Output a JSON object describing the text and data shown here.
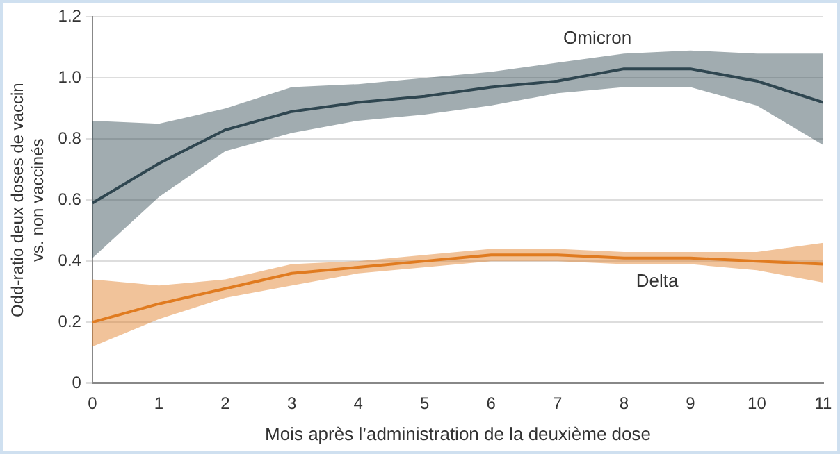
{
  "chart_data": {
    "type": "line",
    "xlabel": "Mois après l’administration de la deuxième dose",
    "ylabel": "Odd-ratio deux doses de vaccin\nvs. non vaccinés",
    "x": [
      0,
      1,
      2,
      3,
      4,
      5,
      6,
      7,
      8,
      9,
      10,
      11
    ],
    "series": [
      {
        "name": "Omicron",
        "color": "#2f4650",
        "values": [
          0.59,
          0.72,
          0.83,
          0.89,
          0.92,
          0.94,
          0.97,
          0.99,
          1.03,
          1.03,
          0.99,
          0.92
        ],
        "lower": [
          0.41,
          0.61,
          0.76,
          0.82,
          0.86,
          0.88,
          0.91,
          0.95,
          0.97,
          0.97,
          0.91,
          0.78
        ],
        "upper": [
          0.86,
          0.85,
          0.9,
          0.97,
          0.98,
          1.0,
          1.02,
          1.05,
          1.08,
          1.09,
          1.08,
          1.08
        ]
      },
      {
        "name": "Delta",
        "color": "#e07b20",
        "values": [
          0.2,
          0.26,
          0.31,
          0.36,
          0.38,
          0.4,
          0.42,
          0.42,
          0.41,
          0.41,
          0.4,
          0.39
        ],
        "lower": [
          0.12,
          0.21,
          0.28,
          0.32,
          0.36,
          0.38,
          0.4,
          0.4,
          0.39,
          0.39,
          0.37,
          0.33
        ],
        "upper": [
          0.34,
          0.32,
          0.34,
          0.39,
          0.4,
          0.42,
          0.44,
          0.44,
          0.43,
          0.43,
          0.43,
          0.46
        ]
      }
    ],
    "xlim": [
      0,
      11
    ],
    "xticks": [
      0,
      1,
      2,
      3,
      4,
      5,
      6,
      7,
      8,
      9,
      10,
      11
    ],
    "ylim": [
      0,
      1.2
    ],
    "yticks": [
      {
        "value": 0,
        "label": "0"
      },
      {
        "value": 0.2,
        "label": "0.2"
      },
      {
        "value": 0.4,
        "label": "0.4"
      },
      {
        "value": 0.6,
        "label": "0.6"
      },
      {
        "value": 0.8,
        "label": "0.8"
      },
      {
        "value": 1.0,
        "label": "1.0"
      },
      {
        "value": 1.2,
        "label": "1.2"
      }
    ],
    "grid": "y",
    "legend": false,
    "marker": "none",
    "line_style": "solid"
  }
}
